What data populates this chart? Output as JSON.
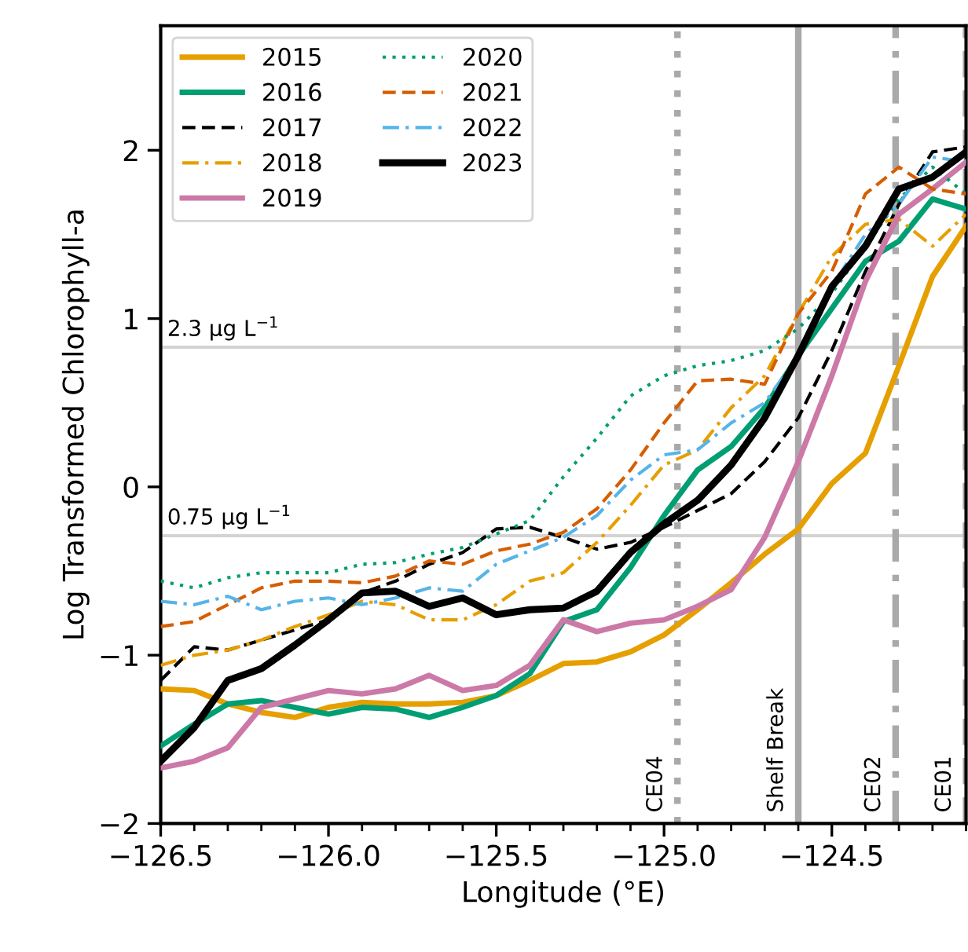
{
  "chart_data": {
    "type": "line",
    "xlabel": "Longitude (°E)",
    "ylabel": "Log Transformed Chlorophyll-a",
    "x": [
      -126.5,
      -126.4,
      -126.3,
      -126.2,
      -126.1,
      -126.0,
      -125.9,
      -125.8,
      -125.7,
      -125.6,
      -125.5,
      -125.4,
      -125.3,
      -125.2,
      -125.1,
      -125.0,
      -124.9,
      -124.8,
      -124.7,
      -124.6,
      -124.5,
      -124.4,
      -124.3,
      -124.2,
      -124.1
    ],
    "series": [
      {
        "name": "2015",
        "color": "#e69f00",
        "line_style": "solid",
        "values": [
          -1.2,
          -1.21,
          -1.29,
          -1.34,
          -1.37,
          -1.31,
          -1.28,
          -1.29,
          -1.29,
          -1.28,
          -1.24,
          -1.15,
          -1.05,
          -1.04,
          -0.98,
          -0.88,
          -0.73,
          -0.57,
          -0.4,
          -0.25,
          0.02,
          0.2,
          0.72,
          1.25,
          1.55
        ]
      },
      {
        "name": "2016",
        "color": "#009e73",
        "line_style": "solid",
        "values": [
          -1.54,
          -1.41,
          -1.29,
          -1.27,
          -1.31,
          -1.35,
          -1.31,
          -1.32,
          -1.37,
          -1.31,
          -1.24,
          -1.11,
          -0.8,
          -0.73,
          -0.48,
          -0.17,
          0.1,
          0.24,
          0.47,
          0.78,
          1.06,
          1.34,
          1.46,
          1.71,
          1.65
        ]
      },
      {
        "name": "2017",
        "color": "#000000",
        "line_style": "dashed",
        "values": [
          -1.15,
          -0.95,
          -0.97,
          -0.91,
          -0.85,
          -0.79,
          -0.63,
          -0.56,
          -0.46,
          -0.39,
          -0.25,
          -0.24,
          -0.3,
          -0.37,
          -0.33,
          -0.24,
          -0.14,
          -0.04,
          0.15,
          0.41,
          0.81,
          1.28,
          1.68,
          1.99,
          2.02
        ]
      },
      {
        "name": "2018",
        "color": "#e69f00",
        "line_style": "dashdot",
        "values": [
          -1.06,
          -1.0,
          -0.97,
          -0.91,
          -0.83,
          -0.76,
          -0.68,
          -0.7,
          -0.79,
          -0.79,
          -0.7,
          -0.56,
          -0.51,
          -0.33,
          -0.11,
          0.13,
          0.22,
          0.47,
          0.66,
          1.03,
          1.37,
          1.56,
          1.59,
          1.43,
          1.62
        ]
      },
      {
        "name": "2019",
        "color": "#cc79a7",
        "line_style": "solid",
        "values": [
          -1.67,
          -1.63,
          -1.55,
          -1.31,
          -1.26,
          -1.21,
          -1.23,
          -1.2,
          -1.12,
          -1.21,
          -1.18,
          -1.06,
          -0.79,
          -0.86,
          -0.81,
          -0.79,
          -0.71,
          -0.61,
          -0.3,
          0.15,
          0.66,
          1.22,
          1.62,
          1.77,
          1.93
        ]
      },
      {
        "name": "2020",
        "color": "#009e73",
        "line_style": "dotted",
        "values": [
          -0.56,
          -0.6,
          -0.54,
          -0.51,
          -0.51,
          -0.51,
          -0.46,
          -0.45,
          -0.4,
          -0.36,
          -0.28,
          -0.2,
          0.06,
          0.29,
          0.54,
          0.66,
          0.72,
          0.75,
          0.81,
          0.94,
          1.15,
          1.43,
          1.71,
          1.9,
          1.74
        ]
      },
      {
        "name": "2021",
        "color": "#d55e00",
        "line_style": "dashed",
        "values": [
          -0.83,
          -0.8,
          -0.7,
          -0.6,
          -0.56,
          -0.56,
          -0.57,
          -0.53,
          -0.44,
          -0.46,
          -0.38,
          -0.34,
          -0.27,
          -0.13,
          0.1,
          0.38,
          0.63,
          0.64,
          0.61,
          1.03,
          1.28,
          1.74,
          1.9,
          1.77,
          1.74
        ]
      },
      {
        "name": "2022",
        "color": "#56b4e9",
        "line_style": "dashdot",
        "values": [
          -0.68,
          -0.7,
          -0.65,
          -0.73,
          -0.68,
          -0.66,
          -0.7,
          -0.66,
          -0.6,
          -0.62,
          -0.46,
          -0.38,
          -0.3,
          -0.17,
          0.04,
          0.19,
          0.22,
          0.38,
          0.5,
          0.78,
          1.19,
          1.5,
          1.68,
          1.96,
          1.93
        ]
      },
      {
        "name": "2023",
        "color": "#000000",
        "line_style": "solid",
        "values": [
          -1.63,
          -1.43,
          -1.15,
          -1.08,
          -0.94,
          -0.79,
          -0.63,
          -0.62,
          -0.71,
          -0.66,
          -0.76,
          -0.73,
          -0.72,
          -0.62,
          -0.39,
          -0.22,
          -0.08,
          0.13,
          0.41,
          0.78,
          1.19,
          1.43,
          1.77,
          1.84,
          1.99
        ]
      }
    ],
    "xlim": [
      -126.5,
      -124.1
    ],
    "ylim": [
      -2,
      2.74
    ],
    "xticks": [
      {
        "value": -126.5,
        "label": "−126.5"
      },
      {
        "value": -126.4,
        "label": null
      },
      {
        "value": -126.3,
        "label": null
      },
      {
        "value": -126.2,
        "label": null
      },
      {
        "value": -126.1,
        "label": null
      },
      {
        "value": -126.0,
        "label": "−126.0"
      },
      {
        "value": -125.9,
        "label": null
      },
      {
        "value": -125.8,
        "label": null
      },
      {
        "value": -125.7,
        "label": null
      },
      {
        "value": -125.6,
        "label": null
      },
      {
        "value": -125.5,
        "label": "−125.5"
      },
      {
        "value": -125.4,
        "label": null
      },
      {
        "value": -125.3,
        "label": null
      },
      {
        "value": -125.2,
        "label": null
      },
      {
        "value": -125.1,
        "label": null
      },
      {
        "value": -125.0,
        "label": "−125.0"
      },
      {
        "value": -124.9,
        "label": null
      },
      {
        "value": -124.8,
        "label": null
      },
      {
        "value": -124.7,
        "label": null
      },
      {
        "value": -124.6,
        "label": null
      },
      {
        "value": -124.5,
        "label": "−124.5"
      },
      {
        "value": -124.4,
        "label": null
      },
      {
        "value": -124.3,
        "label": null
      },
      {
        "value": -124.2,
        "label": null
      },
      {
        "value": -124.1,
        "label": null
      }
    ],
    "yticks": [
      {
        "value": -2,
        "label": "−2"
      },
      {
        "value": -1,
        "label": "−1"
      },
      0,
      1,
      2
    ],
    "ref_lines": [
      {
        "axis": "y",
        "value": 0.83,
        "label": "2.3 μg L$^{−1}$",
        "color": "#d3d3d3",
        "line_style": "solid"
      },
      {
        "axis": "y",
        "value": -0.29,
        "label": "0.75 μg L$^{−1}$",
        "color": "#d3d3d3",
        "line_style": "solid"
      },
      {
        "axis": "x",
        "value": -124.96,
        "label": "CE04",
        "color": "#a9a9a9",
        "line_style": "dotted"
      },
      {
        "axis": "x",
        "value": -124.6,
        "label": "Shelf Break",
        "color": "#a9a9a9",
        "line_style": "solid"
      },
      {
        "axis": "x",
        "value": -124.31,
        "label": "CE02",
        "color": "#a9a9a9",
        "line_style": "dashdot"
      },
      {
        "axis": "x",
        "value": -124.1,
        "label": "CE01",
        "color": "#a9a9a9",
        "line_style": "dashed"
      }
    ],
    "grid": false,
    "legend": "top left"
  }
}
